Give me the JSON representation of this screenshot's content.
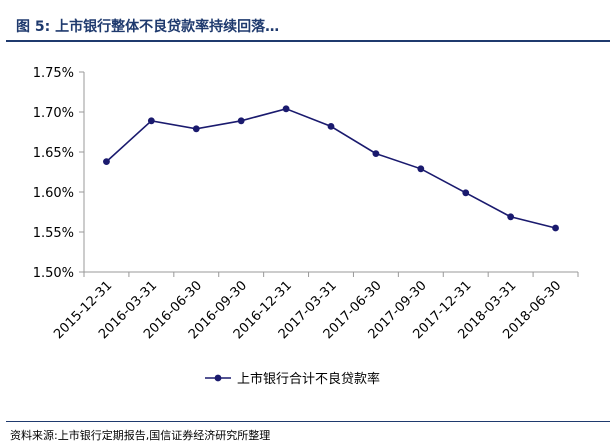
{
  "header": {
    "title": "图 5:  上市银行整体不良贷款率持续回落…"
  },
  "footer": {
    "source": "资料来源:上市银行定期报告,国信证券经济研究所整理"
  },
  "colors": {
    "series": "#1a1a6e",
    "title": "#1f3a6e",
    "axis": "#999999"
  },
  "chart_data": {
    "type": "line",
    "title": "",
    "xlabel": "",
    "ylabel": "",
    "categories": [
      "2015-12-31",
      "2016-03-31",
      "2016-06-30",
      "2016-09-30",
      "2016-12-31",
      "2017-03-31",
      "2017-06-30",
      "2017-09-30",
      "2017-12-31",
      "2018-03-31",
      "2018-06-30"
    ],
    "series": [
      {
        "name": "上市银行合计不良贷款率",
        "values": [
          1.638,
          1.689,
          1.679,
          1.689,
          1.704,
          1.682,
          1.648,
          1.629,
          1.599,
          1.569,
          1.555
        ]
      }
    ],
    "ylim": [
      1.5,
      1.75
    ],
    "yticks": [
      1.5,
      1.55,
      1.6,
      1.65,
      1.7,
      1.75
    ],
    "ytick_labels": [
      "1.50%",
      "1.55%",
      "1.60%",
      "1.65%",
      "1.70%",
      "1.75%"
    ],
    "grid": false,
    "legend": "bottom"
  }
}
